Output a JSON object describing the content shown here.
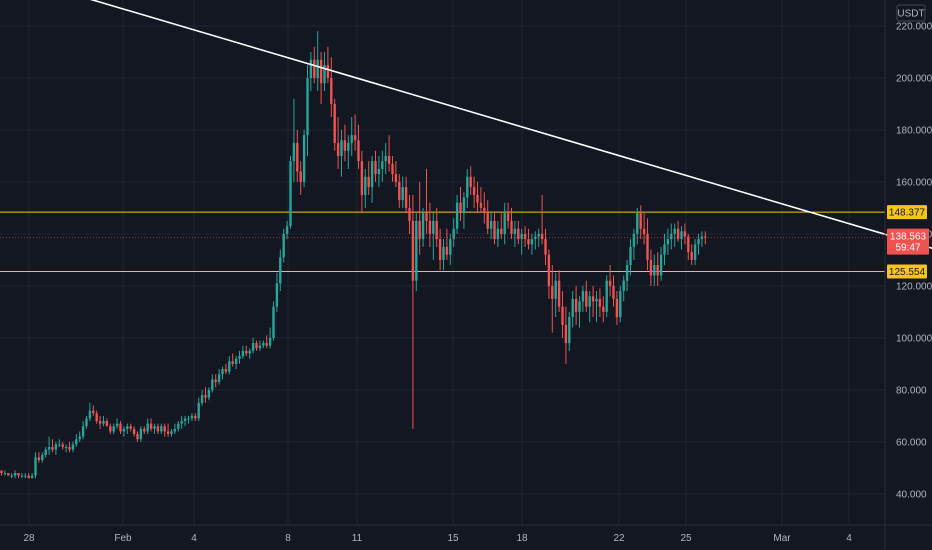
{
  "currency_badge": "USDT",
  "colors": {
    "background": "#131722",
    "grid": "#1f2433",
    "up": "#26a69a",
    "down": "#ef5350",
    "trendline": "#ffffff",
    "level": "#f5c518",
    "text": "#b2b5be"
  },
  "chart_data": {
    "type": "candlestick",
    "title": "",
    "xlabel": "",
    "ylabel": "",
    "ylim": [
      28,
      230
    ],
    "y_ticks": [
      "220.000",
      "200.000",
      "180.000",
      "160.000",
      "140.000",
      "120.000",
      "100.000",
      "80.000",
      "60.000",
      "40.000"
    ],
    "x_ticks": [
      "28",
      "Feb",
      "4",
      "8",
      "11",
      "15",
      "18",
      "22",
      "25",
      "Mar",
      "4"
    ],
    "grid": true,
    "levels": [
      {
        "label": "148.377",
        "value": 148.377
      },
      {
        "label": "125.554",
        "value": 125.554
      }
    ],
    "last_price": {
      "label": "138.563",
      "value": 138.563,
      "countdown": "59:47"
    },
    "trendline": {
      "start": {
        "candle": -30,
        "price": 252
      },
      "end": {
        "candle": 275,
        "price": 134
      }
    },
    "candles": [
      [
        49,
        49,
        47,
        48
      ],
      [
        48,
        49,
        47,
        48
      ],
      [
        48,
        48,
        47,
        47
      ],
      [
        47,
        48,
        46,
        47
      ],
      [
        47,
        49,
        46,
        48
      ],
      [
        48,
        48,
        46,
        47
      ],
      [
        47,
        48,
        46,
        47
      ],
      [
        47,
        48,
        46,
        47
      ],
      [
        47,
        48,
        46,
        46
      ],
      [
        46,
        48,
        46,
        47
      ],
      [
        47,
        56,
        46,
        54
      ],
      [
        54,
        56,
        52,
        53
      ],
      [
        53,
        56,
        52,
        55
      ],
      [
        55,
        58,
        54,
        57
      ],
      [
        57,
        62,
        55,
        58
      ],
      [
        58,
        61,
        56,
        57
      ],
      [
        57,
        60,
        55,
        59
      ],
      [
        59,
        61,
        58,
        59
      ],
      [
        59,
        60,
        57,
        58
      ],
      [
        58,
        59,
        56,
        58
      ],
      [
        58,
        60,
        56,
        57
      ],
      [
        57,
        60,
        56,
        59
      ],
      [
        59,
        63,
        58,
        61
      ],
      [
        61,
        64,
        60,
        62
      ],
      [
        62,
        68,
        61,
        66
      ],
      [
        66,
        70,
        65,
        69
      ],
      [
        69,
        75,
        68,
        72
      ],
      [
        72,
        74,
        70,
        71
      ],
      [
        71,
        72,
        67,
        68
      ],
      [
        68,
        70,
        65,
        67
      ],
      [
        67,
        70,
        66,
        68
      ],
      [
        68,
        69,
        66,
        66
      ],
      [
        66,
        67,
        63,
        64
      ],
      [
        64,
        67,
        63,
        66
      ],
      [
        66,
        69,
        65,
        67
      ],
      [
        67,
        68,
        63,
        64
      ],
      [
        64,
        66,
        62,
        65
      ],
      [
        65,
        67,
        63,
        66
      ],
      [
        66,
        67,
        64,
        65
      ],
      [
        65,
        66,
        62,
        63
      ],
      [
        63,
        64,
        60,
        61
      ],
      [
        61,
        66,
        60,
        65
      ],
      [
        65,
        66,
        63,
        64
      ],
      [
        64,
        69,
        63,
        67
      ],
      [
        67,
        69,
        64,
        65
      ],
      [
        65,
        67,
        63,
        66
      ],
      [
        66,
        67,
        63,
        64
      ],
      [
        64,
        67,
        63,
        66
      ],
      [
        66,
        67,
        62,
        64
      ],
      [
        64,
        67,
        62,
        63
      ],
      [
        63,
        65,
        62,
        64
      ],
      [
        64,
        67,
        63,
        65
      ],
      [
        65,
        68,
        64,
        67
      ],
      [
        67,
        70,
        65,
        68
      ],
      [
        68,
        70,
        66,
        69
      ],
      [
        69,
        70,
        67,
        69
      ],
      [
        69,
        71,
        68,
        70
      ],
      [
        70,
        71,
        68,
        69
      ],
      [
        69,
        77,
        68,
        75
      ],
      [
        75,
        80,
        74,
        78
      ],
      [
        78,
        81,
        75,
        77
      ],
      [
        77,
        81,
        76,
        80
      ],
      [
        80,
        86,
        79,
        84
      ],
      [
        84,
        86,
        81,
        83
      ],
      [
        83,
        88,
        82,
        86
      ],
      [
        86,
        89,
        84,
        88
      ],
      [
        88,
        90,
        86,
        87
      ],
      [
        87,
        93,
        86,
        91
      ],
      [
        91,
        94,
        89,
        90
      ],
      [
        90,
        93,
        88,
        92
      ],
      [
        92,
        95,
        90,
        93
      ],
      [
        93,
        97,
        92,
        95
      ],
      [
        95,
        97,
        93,
        94
      ],
      [
        94,
        96,
        92,
        95
      ],
      [
        95,
        100,
        94,
        98
      ],
      [
        98,
        99,
        95,
        96
      ],
      [
        96,
        99,
        95,
        97
      ],
      [
        97,
        99,
        96,
        98
      ],
      [
        98,
        101,
        96,
        97
      ],
      [
        97,
        104,
        96,
        100
      ],
      [
        100,
        114,
        99,
        112
      ],
      [
        112,
        125,
        110,
        121
      ],
      [
        121,
        134,
        118,
        131
      ],
      [
        131,
        142,
        129,
        140
      ],
      [
        140,
        145,
        138,
        143
      ],
      [
        143,
        170,
        142,
        168
      ],
      [
        168,
        192,
        160,
        175
      ],
      [
        175,
        180,
        160,
        164
      ],
      [
        164,
        168,
        155,
        160
      ],
      [
        160,
        180,
        158,
        178
      ],
      [
        178,
        205,
        170,
        200
      ],
      [
        200,
        210,
        195,
        207
      ],
      [
        207,
        212,
        198,
        200
      ],
      [
        200,
        218,
        195,
        207
      ],
      [
        207,
        210,
        190,
        198
      ],
      [
        198,
        210,
        195,
        205
      ],
      [
        205,
        212,
        198,
        200
      ],
      [
        200,
        208,
        185,
        190
      ],
      [
        190,
        192,
        172,
        175
      ],
      [
        175,
        185,
        165,
        170
      ],
      [
        170,
        180,
        162,
        176
      ],
      [
        176,
        182,
        168,
        172
      ],
      [
        172,
        178,
        165,
        175
      ],
      [
        175,
        185,
        170,
        178
      ],
      [
        178,
        186,
        172,
        176
      ],
      [
        176,
        182,
        165,
        168
      ],
      [
        168,
        172,
        148,
        155
      ],
      [
        155,
        165,
        150,
        162
      ],
      [
        162,
        168,
        155,
        158
      ],
      [
        158,
        170,
        152,
        168
      ],
      [
        168,
        172,
        160,
        163
      ],
      [
        163,
        170,
        158,
        165
      ],
      [
        165,
        172,
        160,
        168
      ],
      [
        168,
        175,
        163,
        170
      ],
      [
        170,
        178,
        164,
        167
      ],
      [
        167,
        170,
        160,
        163
      ],
      [
        163,
        168,
        158,
        160
      ],
      [
        160,
        163,
        150,
        153
      ],
      [
        153,
        162,
        150,
        158
      ],
      [
        158,
        162,
        148,
        150
      ],
      [
        150,
        155,
        140,
        145
      ],
      [
        145,
        155,
        65,
        122
      ],
      [
        122,
        148,
        118,
        145
      ],
      [
        145,
        160,
        132,
        138
      ],
      [
        138,
        150,
        135,
        148
      ],
      [
        148,
        165,
        140,
        145
      ],
      [
        145,
        152,
        135,
        140
      ],
      [
        140,
        148,
        130,
        145
      ],
      [
        145,
        150,
        135,
        138
      ],
      [
        138,
        142,
        126,
        130
      ],
      [
        130,
        138,
        126,
        135
      ],
      [
        135,
        142,
        130,
        132
      ],
      [
        132,
        140,
        128,
        138
      ],
      [
        138,
        146,
        135,
        142
      ],
      [
        142,
        155,
        140,
        152
      ],
      [
        152,
        158,
        145,
        148
      ],
      [
        148,
        156,
        142,
        154
      ],
      [
        154,
        165,
        150,
        162
      ],
      [
        162,
        166,
        155,
        158
      ],
      [
        158,
        162,
        150,
        155
      ],
      [
        155,
        160,
        148,
        152
      ],
      [
        152,
        158,
        148,
        150
      ],
      [
        150,
        156,
        144,
        148
      ],
      [
        148,
        153,
        140,
        142
      ],
      [
        142,
        148,
        138,
        145
      ],
      [
        145,
        148,
        136,
        138
      ],
      [
        138,
        145,
        135,
        142
      ],
      [
        142,
        148,
        138,
        140
      ],
      [
        140,
        152,
        136,
        148
      ],
      [
        148,
        152,
        142,
        145
      ],
      [
        145,
        150,
        138,
        140
      ],
      [
        140,
        145,
        135,
        142
      ],
      [
        142,
        145,
        136,
        138
      ],
      [
        138,
        142,
        132,
        140
      ],
      [
        140,
        143,
        135,
        138
      ],
      [
        138,
        142,
        134,
        136
      ],
      [
        136,
        140,
        132,
        138
      ],
      [
        138,
        141,
        134,
        139
      ],
      [
        139,
        142,
        135,
        140
      ],
      [
        140,
        155,
        136,
        138
      ],
      [
        138,
        142,
        128,
        132
      ],
      [
        132,
        134,
        115,
        120
      ],
      [
        120,
        128,
        102,
        115
      ],
      [
        115,
        125,
        108,
        122
      ],
      [
        122,
        126,
        110,
        112
      ],
      [
        112,
        118,
        100,
        105
      ],
      [
        105,
        112,
        90,
        98
      ],
      [
        98,
        110,
        95,
        108
      ],
      [
        108,
        118,
        104,
        115
      ],
      [
        115,
        120,
        105,
        110
      ],
      [
        110,
        116,
        104,
        114
      ],
      [
        114,
        120,
        110,
        118
      ],
      [
        118,
        122,
        110,
        112
      ],
      [
        112,
        118,
        106,
        116
      ],
      [
        116,
        120,
        108,
        114
      ],
      [
        114,
        118,
        106,
        115
      ],
      [
        115,
        119,
        108,
        112
      ],
      [
        112,
        116,
        106,
        110
      ],
      [
        110,
        124,
        108,
        122
      ],
      [
        122,
        128,
        116,
        120
      ],
      [
        120,
        124,
        112,
        115
      ],
      [
        115,
        118,
        105,
        108
      ],
      [
        108,
        120,
        106,
        118
      ],
      [
        118,
        124,
        114,
        122
      ],
      [
        122,
        130,
        118,
        128
      ],
      [
        128,
        138,
        124,
        135
      ],
      [
        135,
        142,
        130,
        140
      ],
      [
        140,
        150,
        136,
        148
      ],
      [
        148,
        151,
        138,
        142
      ],
      [
        142,
        148,
        136,
        140
      ],
      [
        140,
        146,
        126,
        130
      ],
      [
        130,
        134,
        120,
        124
      ],
      [
        124,
        132,
        120,
        128
      ],
      [
        128,
        133,
        120,
        124
      ],
      [
        124,
        135,
        122,
        132
      ],
      [
        132,
        140,
        128,
        136
      ],
      [
        136,
        142,
        132,
        138
      ],
      [
        138,
        144,
        134,
        140
      ],
      [
        140,
        144,
        135,
        142
      ],
      [
        142,
        145,
        137,
        138
      ],
      [
        138,
        143,
        134,
        141
      ],
      [
        141,
        144,
        136,
        139
      ],
      [
        139,
        140,
        130,
        133
      ],
      [
        133,
        136,
        128,
        130
      ],
      [
        130,
        138,
        128,
        136
      ],
      [
        136,
        140,
        132,
        138
      ],
      [
        138,
        141,
        135,
        139
      ],
      [
        139,
        141,
        136,
        138.563
      ]
    ]
  }
}
